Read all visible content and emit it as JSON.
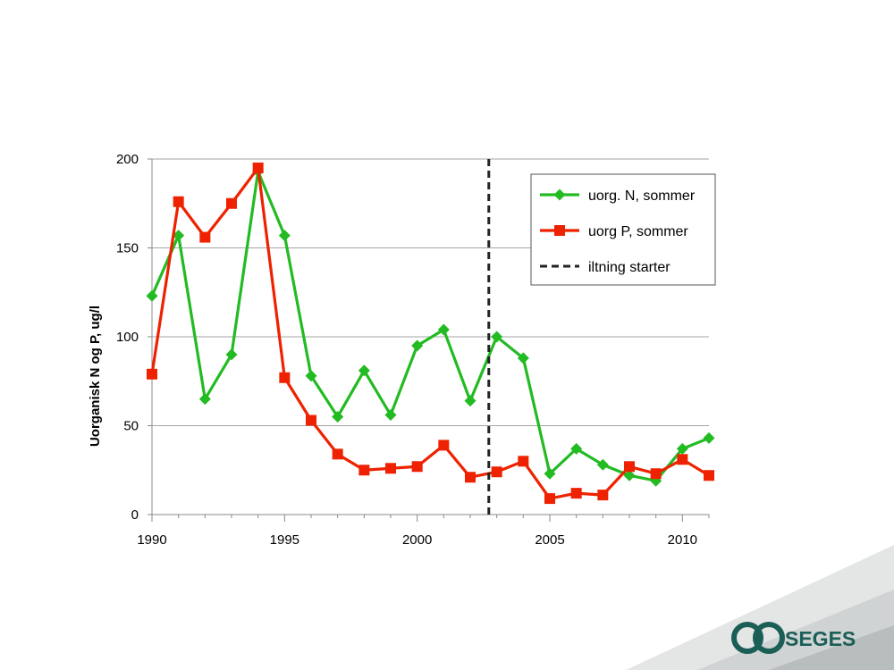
{
  "brand": {
    "name": "SEGES",
    "color": "#1b5e56"
  },
  "chart_data": {
    "type": "line",
    "ylabel": "Uorganisk N og P, ug/l",
    "xlabel": "",
    "xlim": [
      1990,
      2011
    ],
    "ylim": [
      0,
      200
    ],
    "yticks": [
      0,
      50,
      100,
      150,
      200
    ],
    "xticks": [
      1990,
      1995,
      2000,
      2005,
      2010
    ],
    "grid": true,
    "legend_position": "top-right",
    "x": [
      1990,
      1991,
      1992,
      1993,
      1994,
      1995,
      1996,
      1997,
      1998,
      1999,
      2000,
      2001,
      2002,
      2003,
      2004,
      2005,
      2006,
      2007,
      2008,
      2009,
      2010,
      2011
    ],
    "series": [
      {
        "name": "uorg. N, sommer",
        "color": "#22bb22",
        "marker": "diamond",
        "values": [
          123,
          157,
          65,
          90,
          193,
          157,
          78,
          55,
          81,
          56,
          95,
          104,
          64,
          100,
          88,
          23,
          37,
          28,
          22,
          19,
          37,
          43
        ]
      },
      {
        "name": "uorg P, sommer",
        "color": "#ee2200",
        "marker": "square",
        "values": [
          79,
          176,
          156,
          175,
          195,
          77,
          53,
          34,
          25,
          26,
          27,
          39,
          21,
          24,
          30,
          9,
          12,
          11,
          27,
          23,
          31,
          22
        ]
      }
    ],
    "vline": {
      "x": 2002.7,
      "name": "iltning starter",
      "style": "dashed",
      "color": "#222222"
    }
  }
}
